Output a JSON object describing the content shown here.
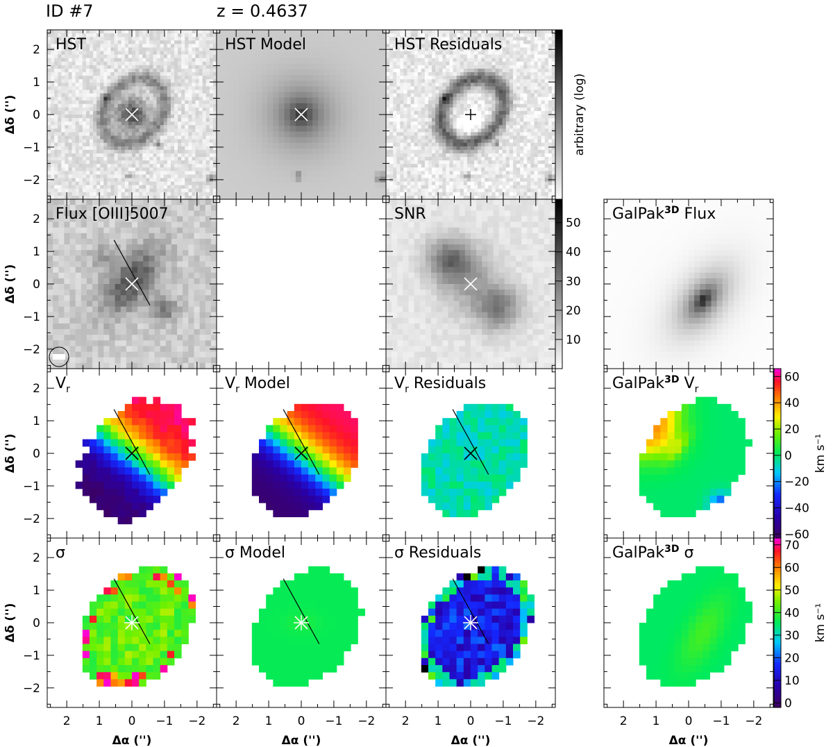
{
  "header": {
    "id_label": "ID #7",
    "z_label": "z = 0.4637"
  },
  "chart_data": {
    "type": "heatmap",
    "x_axis": {
      "label": "Δα ('')",
      "ticks": [
        "2",
        "1",
        "0",
        "−1",
        "−2"
      ],
      "range": [
        2.6,
        -2.6
      ],
      "reversed": true
    },
    "y_axis": {
      "label": "Δδ ('')",
      "ticks": [
        "−2",
        "−1",
        "0",
        "1",
        "2"
      ],
      "range": [
        -2.6,
        2.6
      ]
    },
    "center_marker": "cross at (0, 0)",
    "major_axis_line": {
      "from": [
        0.55,
        1.35
      ],
      "to": [
        -0.55,
        -0.65
      ]
    },
    "panels": [
      {
        "row": 0,
        "col": 0,
        "title": "HST",
        "colormap": "gray",
        "map": "hst"
      },
      {
        "row": 0,
        "col": 1,
        "title": "HST Model",
        "colormap": "gray",
        "map": "hstmodel"
      },
      {
        "row": 0,
        "col": 2,
        "title": "HST Residuals",
        "colormap": "gray",
        "map": "hstres"
      },
      {
        "row": 1,
        "col": 0,
        "title": "Flux [OIII]5007",
        "colormap": "gray",
        "map": "flux",
        "psf_circle": true
      },
      {
        "row": 1,
        "col": 1,
        "title": "",
        "colormap": "none",
        "map": "blank"
      },
      {
        "row": 1,
        "col": 2,
        "title": "SNR",
        "colormap": "gray",
        "map": "snr"
      },
      {
        "row": 1,
        "col": 3,
        "title": "GalPak3D Flux",
        "title_parts": [
          "GalPak",
          "3D",
          " Flux"
        ],
        "colormap": "gray",
        "map": "gpflux"
      },
      {
        "row": 2,
        "col": 0,
        "title": "Vr",
        "title_parts": [
          "V",
          "r",
          ""
        ],
        "colormap": "rainbow",
        "map": "vr"
      },
      {
        "row": 2,
        "col": 1,
        "title": "Vr Model",
        "title_parts": [
          "V",
          "r",
          " Model"
        ],
        "colormap": "rainbow",
        "map": "vrmodel"
      },
      {
        "row": 2,
        "col": 2,
        "title": "Vr Residuals",
        "title_parts": [
          "V",
          "r",
          " Residuals"
        ],
        "colormap": "rainbow",
        "map": "vrres"
      },
      {
        "row": 2,
        "col": 3,
        "title": "GalPak3D Vr",
        "title_parts": [
          "GalPak",
          "3D",
          " V",
          "r"
        ],
        "colormap": "rainbow",
        "map": "gpvr"
      },
      {
        "row": 3,
        "col": 0,
        "title": "σ",
        "colormap": "rainbow",
        "map": "sig"
      },
      {
        "row": 3,
        "col": 1,
        "title": "σ Model",
        "colormap": "rainbow",
        "map": "sigmodel"
      },
      {
        "row": 3,
        "col": 2,
        "title": "σ Residuals",
        "colormap": "rainbow",
        "map": "sigres"
      },
      {
        "row": 3,
        "col": 3,
        "title": "GalPak3D σ",
        "title_parts": [
          "GalPak",
          "3D",
          " σ"
        ],
        "colormap": "rainbow",
        "map": "gpsig"
      }
    ],
    "colorbars": [
      {
        "row": 0,
        "label": "arbitrary (log)",
        "ticks": [],
        "colormap": "gray"
      },
      {
        "row": 1,
        "label": "",
        "ticks": [
          10,
          20,
          30,
          40,
          50
        ],
        "range": [
          0,
          58
        ],
        "colormap": "gray"
      },
      {
        "row": 2,
        "label": "km s⁻¹",
        "ticks": [
          -60,
          -40,
          -20,
          0,
          20,
          40,
          60
        ],
        "range": [
          -63,
          66
        ],
        "colormap": "rainbow"
      },
      {
        "row": 3,
        "label": "km s⁻¹",
        "ticks": [
          0,
          10,
          20,
          30,
          40,
          50,
          60,
          70
        ],
        "range": [
          -2,
          73
        ],
        "colormap": "rainbow"
      }
    ],
    "colors": {
      "rainbow_low": "#3b0063",
      "rainbow_mid": "#00e040",
      "rainbow_high": "#ff00c8",
      "cross": "#ffffff",
      "line": "#000000"
    }
  }
}
